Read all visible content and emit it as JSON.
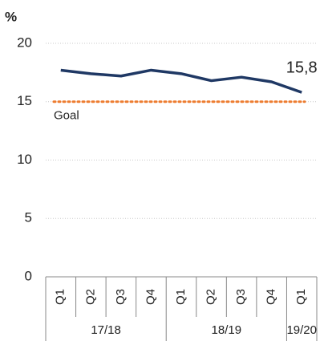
{
  "chart_data": {
    "type": "line",
    "y_label": "%",
    "categories": [
      "Q1",
      "Q2",
      "Q3",
      "Q4",
      "Q1",
      "Q2",
      "Q3",
      "Q4",
      "Q1"
    ],
    "category_groups": [
      "17/18",
      "17/18",
      "17/18",
      "17/18",
      "18/19",
      "18/19",
      "18/19",
      "18/19",
      "19/20"
    ],
    "values": [
      17.7,
      17.4,
      17.2,
      17.7,
      17.4,
      16.8,
      17.1,
      16.7,
      15.8
    ],
    "value_labels": [
      null,
      null,
      null,
      null,
      null,
      null,
      null,
      null,
      "15,8"
    ],
    "color": "#1f3864",
    "goal": {
      "value": 15,
      "label": "Goal",
      "color": "#ed7d31"
    },
    "ylim": [
      0,
      20
    ],
    "yticks": [
      0,
      5,
      10,
      15,
      20
    ],
    "grid": true
  }
}
